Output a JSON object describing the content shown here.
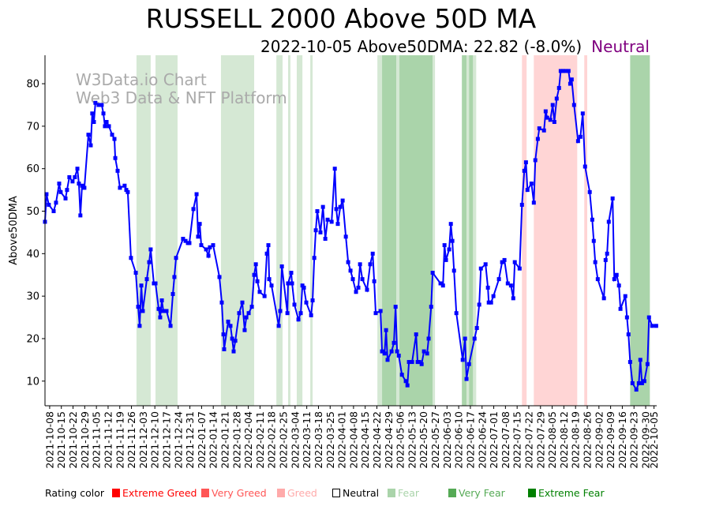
{
  "title": "RUSSELL 2000 Above 50D MA",
  "subtitle": {
    "text": "2022-10-05 Above50DMA: 22.82 (-8.0%)",
    "rating": "Neutral",
    "rating_color": "#800080"
  },
  "watermark": {
    "line1": "W3Data.io Chart",
    "line2": "Web3 Data & NFT Platform"
  },
  "legend": {
    "title": "Rating color",
    "items": [
      {
        "label": "Extreme Greed",
        "color": "#ff0000"
      },
      {
        "label": "Very Greed",
        "color": "#ff5555"
      },
      {
        "label": "Greed",
        "color": "#ffaaaa"
      },
      {
        "label": "Neutral",
        "color": "#ffffff"
      },
      {
        "label": "Fear",
        "color": "#aad4aa"
      },
      {
        "label": "Very Fear",
        "color": "#55aa55"
      },
      {
        "label": "Extreme Fear",
        "color": "#008000"
      }
    ]
  },
  "chart_data": {
    "type": "line",
    "title": "RUSSELL 2000 Above 50D MA",
    "xlabel": "",
    "ylabel": "Above50DMA",
    "x_origin_date": "2021-10-08",
    "x_unit": "days since x_origin_date",
    "xlim": [
      -2.8,
      363.6
    ],
    "ylim": [
      4.2,
      86.7
    ],
    "yticks": [
      10,
      20,
      30,
      40,
      50,
      60,
      70,
      80
    ],
    "xticks": [
      "2021-10-08",
      "2021-10-15",
      "2021-10-22",
      "2021-10-29",
      "2021-11-05",
      "2021-11-12",
      "2021-11-19",
      "2021-11-26",
      "2021-12-03",
      "2021-12-10",
      "2021-12-17",
      "2021-12-24",
      "2021-12-31",
      "2022-01-07",
      "2022-01-14",
      "2022-01-21",
      "2022-01-28",
      "2022-02-04",
      "2022-02-11",
      "2022-02-18",
      "2022-02-25",
      "2022-03-04",
      "2022-03-11",
      "2022-03-18",
      "2022-03-25",
      "2022-04-01",
      "2022-04-08",
      "2022-04-15",
      "2022-04-22",
      "2022-04-29",
      "2022-05-06",
      "2022-05-13",
      "2022-05-20",
      "2022-05-27",
      "2022-06-03",
      "2022-06-10",
      "2022-06-17",
      "2022-06-24",
      "2022-07-01",
      "2022-07-08",
      "2022-07-15",
      "2022-07-22",
      "2022-07-29",
      "2022-08-05",
      "2022-08-12",
      "2022-08-19",
      "2022-08-26",
      "2022-09-02",
      "2022-09-09",
      "2022-09-16",
      "2022-09-23",
      "2022-09-30",
      "2022-10-05"
    ],
    "grid": false,
    "series": [
      {
        "name": "Above50DMA",
        "color": "#0000ff",
        "points": [
          [
            -2.8,
            47.5
          ],
          [
            -1.9,
            54
          ],
          [
            -0.5,
            51.5
          ],
          [
            2.4,
            50
          ],
          [
            3.8,
            52
          ],
          [
            5.7,
            56.5
          ],
          [
            6.6,
            54.5
          ],
          [
            9.5,
            53
          ],
          [
            10.4,
            55
          ],
          [
            11.8,
            58
          ],
          [
            13.7,
            57
          ],
          [
            15.1,
            58
          ],
          [
            16.6,
            60
          ],
          [
            17.5,
            56.5
          ],
          [
            18.4,
            49
          ],
          [
            19.4,
            56
          ],
          [
            20.8,
            55.5
          ],
          [
            23.2,
            68
          ],
          [
            24.6,
            65.5
          ],
          [
            25.5,
            73
          ],
          [
            26.5,
            71
          ],
          [
            27.4,
            75.5
          ],
          [
            29.3,
            75
          ],
          [
            31.2,
            75
          ],
          [
            32.2,
            73
          ],
          [
            33.1,
            70
          ],
          [
            34.1,
            71
          ],
          [
            35.5,
            70
          ],
          [
            37.4,
            68
          ],
          [
            38.8,
            67
          ],
          [
            39.3,
            62.5
          ],
          [
            40.7,
            59.5
          ],
          [
            42.1,
            55.5
          ],
          [
            44.9,
            56
          ],
          [
            45.9,
            55
          ],
          [
            46.8,
            54.5
          ],
          [
            48.7,
            39
          ],
          [
            51.6,
            35.5
          ],
          [
            53,
            27.5
          ],
          [
            53.9,
            23
          ],
          [
            54.9,
            32.5
          ],
          [
            55.8,
            26.5
          ],
          [
            58.2,
            34
          ],
          [
            59.6,
            38
          ],
          [
            60.5,
            41
          ],
          [
            62.4,
            33
          ],
          [
            63.4,
            33
          ],
          [
            65.3,
            27
          ],
          [
            66.2,
            25
          ],
          [
            67.2,
            29
          ],
          [
            68.1,
            26.5
          ],
          [
            70,
            26.5
          ],
          [
            72.4,
            23
          ],
          [
            73.8,
            30.5
          ],
          [
            74.7,
            34.5
          ],
          [
            75.7,
            39
          ],
          [
            79.9,
            43.5
          ],
          [
            81.4,
            43
          ],
          [
            82.8,
            42.5
          ],
          [
            83.7,
            42.5
          ],
          [
            86.1,
            50.5
          ],
          [
            88,
            54
          ],
          [
            88.9,
            44
          ],
          [
            89.9,
            47
          ],
          [
            90.8,
            42
          ],
          [
            93.7,
            41
          ],
          [
            95.1,
            39.5
          ],
          [
            96,
            41.5
          ],
          [
            97.9,
            42
          ],
          [
            101.7,
            34.5
          ],
          [
            103.1,
            28.5
          ],
          [
            104.1,
            21
          ],
          [
            104.5,
            17.5
          ],
          [
            106.9,
            24
          ],
          [
            108.3,
            23
          ],
          [
            109.3,
            20
          ],
          [
            110.2,
            17
          ],
          [
            111.2,
            19.5
          ],
          [
            113.5,
            26
          ],
          [
            115.4,
            28.5
          ],
          [
            116.8,
            22
          ],
          [
            117.8,
            25
          ],
          [
            119.2,
            26
          ],
          [
            121.1,
            27.5
          ],
          [
            122.5,
            35
          ],
          [
            123.5,
            37.5
          ],
          [
            124.4,
            33.5
          ],
          [
            125.8,
            31
          ],
          [
            128.7,
            30
          ],
          [
            130.1,
            40
          ],
          [
            131,
            42
          ],
          [
            131.5,
            34
          ],
          [
            132.9,
            32.5
          ],
          [
            137.2,
            23
          ],
          [
            138.1,
            26.5
          ],
          [
            139.1,
            37
          ],
          [
            142.4,
            26
          ],
          [
            142.8,
            33
          ],
          [
            144.7,
            35.5
          ],
          [
            145.2,
            33
          ],
          [
            146.6,
            28
          ],
          [
            149,
            24.5
          ],
          [
            150.4,
            26
          ],
          [
            151.4,
            32.5
          ],
          [
            152.3,
            32
          ],
          [
            153.7,
            28.5
          ],
          [
            156.6,
            25.5
          ],
          [
            157.5,
            29
          ],
          [
            158.5,
            39
          ],
          [
            159.4,
            45.5
          ],
          [
            160.3,
            50
          ],
          [
            162.2,
            45
          ],
          [
            163.7,
            51
          ],
          [
            165.1,
            43.5
          ],
          [
            166.5,
            48
          ],
          [
            168.9,
            47.5
          ],
          [
            170.8,
            60
          ],
          [
            171.7,
            50.5
          ],
          [
            172.6,
            47
          ],
          [
            174.1,
            51
          ],
          [
            175.5,
            52.5
          ],
          [
            177.4,
            44
          ],
          [
            178.8,
            38
          ],
          [
            180.2,
            36
          ],
          [
            181.6,
            34
          ],
          [
            183.5,
            31
          ],
          [
            184.9,
            32
          ],
          [
            185.9,
            37.5
          ],
          [
            187.3,
            34
          ],
          [
            190.1,
            31.5
          ],
          [
            192,
            37.5
          ],
          [
            193.5,
            40
          ],
          [
            194.4,
            33.5
          ],
          [
            195.3,
            26
          ],
          [
            198.2,
            26.5
          ],
          [
            199.1,
            17
          ],
          [
            200.6,
            16.5
          ],
          [
            201.5,
            22
          ],
          [
            202.4,
            15
          ],
          [
            204.8,
            17
          ],
          [
            206.2,
            19
          ],
          [
            207.2,
            27.5
          ],
          [
            208.1,
            17
          ],
          [
            209.1,
            16
          ],
          [
            211,
            11.5
          ],
          [
            213.3,
            10
          ],
          [
            214.3,
            9
          ],
          [
            215.2,
            14.5
          ],
          [
            217.1,
            14.5
          ],
          [
            219.5,
            21
          ],
          [
            220.4,
            14.5
          ],
          [
            221.4,
            14.5
          ],
          [
            222.8,
            14
          ],
          [
            224.2,
            17
          ],
          [
            226.1,
            16.5
          ],
          [
            227,
            20
          ],
          [
            228.5,
            27.5
          ],
          [
            229.4,
            35.5
          ],
          [
            234.1,
            33
          ],
          [
            235.6,
            32.5
          ],
          [
            236.5,
            42
          ],
          [
            237.4,
            38.5
          ],
          [
            239.3,
            41
          ],
          [
            240.3,
            47
          ],
          [
            241.2,
            43
          ],
          [
            242.2,
            36
          ],
          [
            243.6,
            26
          ],
          [
            247.4,
            15
          ],
          [
            248.8,
            20
          ],
          [
            249.7,
            10.5
          ],
          [
            251.2,
            14
          ],
          [
            254.5,
            20
          ],
          [
            255.9,
            22.5
          ],
          [
            257.3,
            28
          ],
          [
            258.3,
            36.5
          ],
          [
            261.1,
            37.5
          ],
          [
            262.5,
            32
          ],
          [
            263,
            28.5
          ],
          [
            264.4,
            28.5
          ],
          [
            265.8,
            30
          ],
          [
            269.1,
            34
          ],
          [
            271,
            38
          ],
          [
            272.4,
            38.5
          ],
          [
            274.4,
            33
          ],
          [
            276.3,
            32.5
          ],
          [
            277.7,
            29.5
          ],
          [
            278.6,
            38
          ],
          [
            281.5,
            36.5
          ],
          [
            282.9,
            51.5
          ],
          [
            284.3,
            59.5
          ],
          [
            285.3,
            61.5
          ],
          [
            286.2,
            55
          ],
          [
            288.6,
            56.5
          ],
          [
            290,
            52
          ],
          [
            290.9,
            62
          ],
          [
            292.4,
            67
          ],
          [
            293.3,
            69.5
          ],
          [
            296.1,
            69
          ],
          [
            297.1,
            73.5
          ],
          [
            298,
            72
          ],
          [
            299.9,
            71.5
          ],
          [
            301.3,
            75
          ],
          [
            302.3,
            71
          ],
          [
            303.7,
            76.5
          ],
          [
            305.1,
            79
          ],
          [
            306.1,
            83
          ],
          [
            307.5,
            83
          ],
          [
            308.9,
            83
          ],
          [
            310.8,
            83
          ],
          [
            311.8,
            80
          ],
          [
            312.7,
            81
          ],
          [
            314.1,
            75
          ],
          [
            316.5,
            66.5
          ],
          [
            317.9,
            67.5
          ],
          [
            319.3,
            73
          ],
          [
            320.7,
            60.5
          ],
          [
            323.5,
            54.5
          ],
          [
            325,
            48
          ],
          [
            325.9,
            43
          ],
          [
            326.8,
            38
          ],
          [
            328.3,
            34
          ],
          [
            332,
            29.5
          ],
          [
            333,
            38.5
          ],
          [
            333.9,
            40
          ],
          [
            334.9,
            47.5
          ],
          [
            337.2,
            53
          ],
          [
            338.2,
            34
          ],
          [
            339.6,
            35
          ],
          [
            341,
            32.5
          ],
          [
            341.9,
            27
          ],
          [
            344.8,
            30
          ],
          [
            345.8,
            25
          ],
          [
            346.7,
            21
          ],
          [
            347.7,
            14.5
          ],
          [
            349.1,
            9.5
          ],
          [
            351.4,
            8
          ],
          [
            352.9,
            9.5
          ],
          [
            353.8,
            15
          ],
          [
            354.8,
            9.5
          ],
          [
            356.2,
            10
          ],
          [
            358.1,
            14
          ],
          [
            359,
            25
          ],
          [
            360.9,
            23
          ],
          [
            363.3,
            23
          ]
        ]
      }
    ],
    "rating_bands": [
      {
        "from": 52,
        "to": 60.5,
        "rating": "Fear"
      },
      {
        "from": 63.4,
        "to": 76.6,
        "rating": "Fear"
      },
      {
        "from": 102.6,
        "to": 122.5,
        "rating": "Fear"
      },
      {
        "from": 135.8,
        "to": 139.5,
        "rating": "Fear"
      },
      {
        "from": 142.8,
        "to": 144.2,
        "rating": "Fear"
      },
      {
        "from": 148,
        "to": 151.4,
        "rating": "Fear"
      },
      {
        "from": 156.1,
        "to": 157.5,
        "rating": "Fear"
      },
      {
        "from": 196.3,
        "to": 199.1,
        "rating": "Fear"
      },
      {
        "from": 199.1,
        "to": 207.6,
        "rating": "Very Fear"
      },
      {
        "from": 207.6,
        "to": 209.5,
        "rating": "Fear"
      },
      {
        "from": 209.5,
        "to": 229.4,
        "rating": "Very Fear"
      },
      {
        "from": 229.4,
        "to": 230.8,
        "rating": "Fear"
      },
      {
        "from": 246.9,
        "to": 249.7,
        "rating": "Very Fear"
      },
      {
        "from": 249.7,
        "to": 251.2,
        "rating": "Fear"
      },
      {
        "from": 251.2,
        "to": 253.6,
        "rating": "Very Fear"
      },
      {
        "from": 253.6,
        "to": 255.5,
        "rating": "Fear"
      },
      {
        "from": 282.9,
        "to": 285.7,
        "rating": "Greed"
      },
      {
        "from": 290,
        "to": 316,
        "rating": "Greed"
      },
      {
        "from": 320.2,
        "to": 322,
        "rating": "Greed"
      },
      {
        "from": 347.7,
        "to": 359.5,
        "rating": "Very Fear"
      }
    ],
    "band_colors": {
      "Fear": "#d5e8d4",
      "Very Fear": "#aad4aa",
      "Greed": "#ffd5d5"
    }
  }
}
